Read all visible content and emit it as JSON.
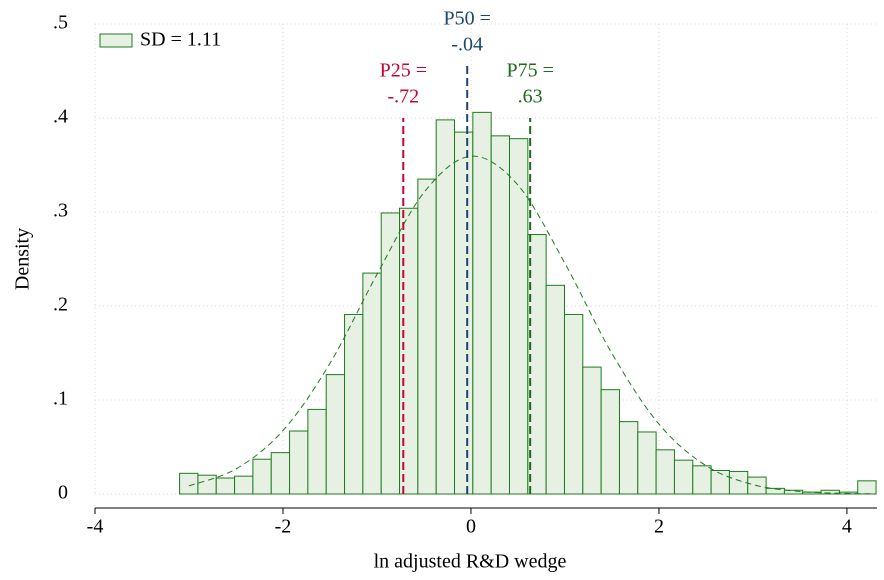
{
  "chart_data": {
    "type": "histogram",
    "xlabel": "ln adjusted R&D wedge",
    "ylabel": "Density",
    "xlim": [
      -4,
      4.32
    ],
    "ylim": [
      0,
      0.5
    ],
    "xticks": [
      -4,
      -2,
      0,
      2,
      4
    ],
    "yticks": [
      0,
      {
        "value": 0.1,
        "label": ".1"
      },
      {
        "value": 0.2,
        "label": ".2"
      },
      {
        "value": 0.3,
        "label": ".3"
      },
      {
        "value": 0.4,
        "label": ".4"
      },
      {
        "value": 0.5,
        "label": ".5"
      }
    ],
    "grid": true,
    "legend": "top-left",
    "series": [
      {
        "name": "SD = 1.11",
        "type": "histogram",
        "color": "#1e7b1e",
        "fill": "#e6f1e3",
        "bins": [
          -3.1,
          -2.905,
          -2.71,
          -2.515,
          -2.32,
          -2.125,
          -1.93,
          -1.735,
          -1.54,
          -1.345,
          -1.15,
          -0.955,
          -0.76,
          -0.565,
          -0.37,
          -0.175,
          0.02,
          0.215,
          0.41,
          0.605,
          0.8,
          0.995,
          1.19,
          1.385,
          1.58,
          1.775,
          1.97,
          2.165,
          2.36,
          2.555,
          2.75,
          2.945,
          3.14,
          3.335,
          3.53,
          3.725,
          3.92,
          4.115,
          4.31
        ],
        "values": [
          0.022,
          0.02,
          0.017,
          0.019,
          0.037,
          0.044,
          0.067,
          0.09,
          0.127,
          0.191,
          0.235,
          0.299,
          0.304,
          0.335,
          0.398,
          0.385,
          0.406,
          0.381,
          0.378,
          0.276,
          0.222,
          0.191,
          0.135,
          0.111,
          0.077,
          0.066,
          0.047,
          0.036,
          0.03,
          0.025,
          0.024,
          0.018,
          0.006,
          0.004,
          0.002,
          0.004,
          0.002,
          0.014
        ]
      },
      {
        "type": "line",
        "color": "#1e7b1e",
        "dashed": true,
        "x": [
          -3,
          -2.5,
          -2,
          -1.5,
          -1,
          -0.5,
          0,
          0.5,
          1,
          1.5,
          2,
          2.5,
          3,
          3.5,
          4,
          4.3
        ],
        "values": [
          0.0087,
          0.0267,
          0.0675,
          0.139,
          0.2336,
          0.3207,
          0.3593,
          0.3286,
          0.2453,
          0.1495,
          0.0744,
          0.0302,
          0.01,
          0.0027,
          0.0006,
          0.0002
        ]
      }
    ],
    "reference_lines": [
      {
        "value": -0.72,
        "label": [
          "P25 =",
          "-.72"
        ],
        "color": "#c10534"
      },
      {
        "value": -0.04,
        "label": [
          "P50 =",
          "-.04"
        ],
        "color": "#1a476f"
      },
      {
        "value": 0.63,
        "label": [
          "P75 =",
          ".63"
        ],
        "color": "#1e6b1e"
      }
    ]
  }
}
